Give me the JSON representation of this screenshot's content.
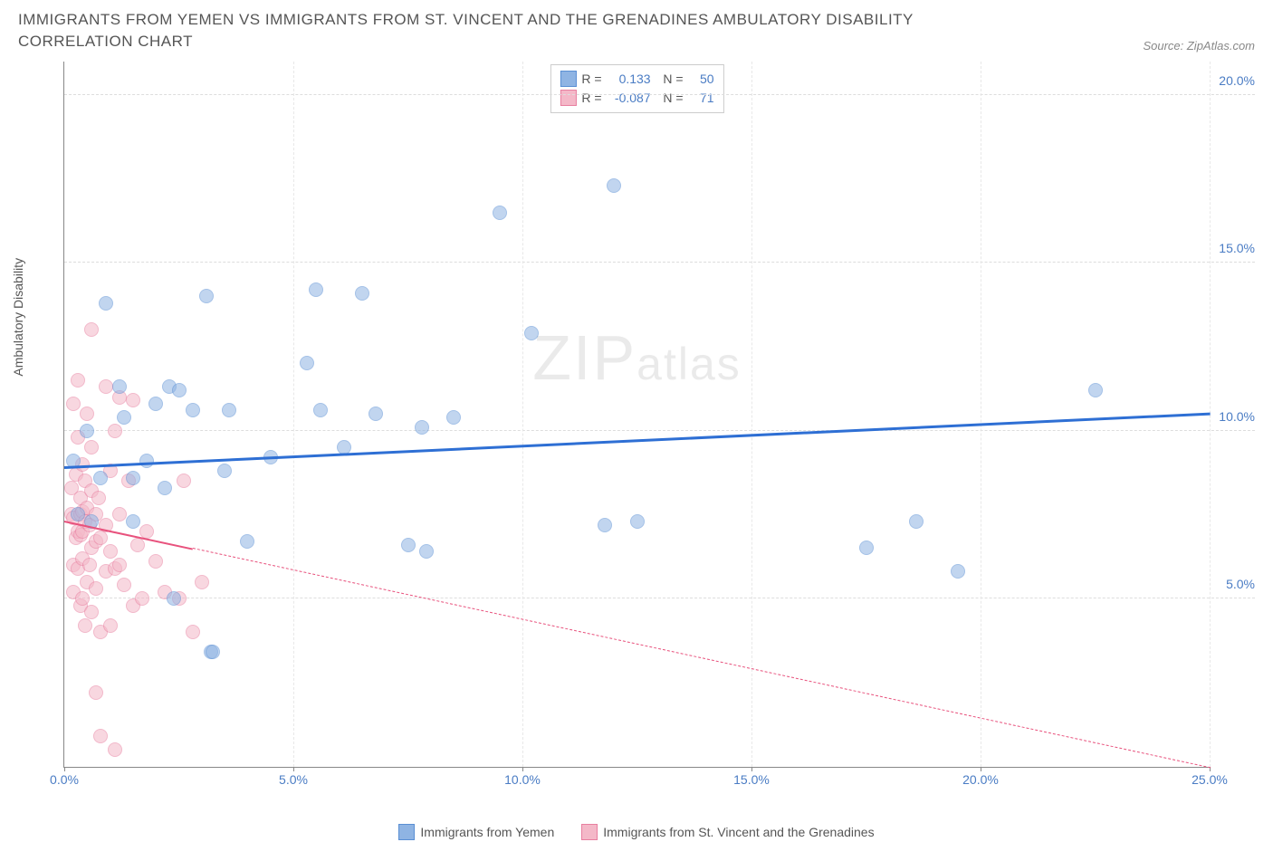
{
  "title": "IMMIGRANTS FROM YEMEN VS IMMIGRANTS FROM ST. VINCENT AND THE GRENADINES AMBULATORY DISABILITY CORRELATION CHART",
  "source": "Source: ZipAtlas.com",
  "y_axis_label": "Ambulatory Disability",
  "watermark_zip": "ZIP",
  "watermark_atlas": "atlas",
  "chart": {
    "type": "scatter",
    "background_color": "#ffffff",
    "grid_color": "#dddddd",
    "axis_color": "#888888",
    "tick_label_color": "#4a7cc4",
    "xlim": [
      0,
      25
    ],
    "ylim": [
      0,
      21
    ],
    "x_ticks": [
      0,
      5,
      10,
      15,
      20,
      25
    ],
    "y_ticks": [
      5,
      10,
      15,
      20
    ],
    "x_tick_suffix": "%",
    "y_tick_suffix": "%",
    "point_radius": 8,
    "point_opacity": 0.55,
    "series": [
      {
        "name": "Immigrants from Yemen",
        "color": "#8fb4e3",
        "border_color": "#5a8fd4",
        "R": "0.133",
        "N": "50",
        "trend": {
          "x1": 0,
          "y1": 8.95,
          "x2": 25,
          "y2": 10.55,
          "solid_until_x": 25,
          "color": "#2e6fd4",
          "width": 2.5
        },
        "points": [
          [
            0.2,
            9.1
          ],
          [
            0.3,
            7.5
          ],
          [
            0.5,
            10.0
          ],
          [
            0.6,
            7.3
          ],
          [
            0.8,
            8.6
          ],
          [
            0.9,
            13.8
          ],
          [
            1.2,
            11.3
          ],
          [
            1.3,
            10.4
          ],
          [
            1.5,
            7.3
          ],
          [
            1.5,
            8.6
          ],
          [
            1.8,
            9.1
          ],
          [
            2.0,
            10.8
          ],
          [
            2.2,
            8.3
          ],
          [
            2.3,
            11.3
          ],
          [
            2.5,
            11.2
          ],
          [
            2.8,
            10.6
          ],
          [
            3.1,
            14.0
          ],
          [
            3.2,
            3.4
          ],
          [
            3.25,
            3.4
          ],
          [
            2.4,
            5.0
          ],
          [
            3.5,
            8.8
          ],
          [
            3.6,
            10.6
          ],
          [
            4.0,
            6.7
          ],
          [
            4.5,
            9.2
          ],
          [
            5.3,
            12.0
          ],
          [
            5.5,
            14.2
          ],
          [
            5.6,
            10.6
          ],
          [
            6.1,
            9.5
          ],
          [
            6.5,
            14.1
          ],
          [
            6.8,
            10.5
          ],
          [
            7.5,
            6.6
          ],
          [
            7.8,
            10.1
          ],
          [
            7.9,
            6.4
          ],
          [
            8.5,
            10.4
          ],
          [
            9.5,
            16.5
          ],
          [
            10.2,
            12.9
          ],
          [
            11.8,
            7.2
          ],
          [
            12.0,
            17.3
          ],
          [
            12.5,
            7.3
          ],
          [
            17.5,
            6.5
          ],
          [
            18.6,
            7.3
          ],
          [
            19.5,
            5.8
          ],
          [
            22.5,
            11.2
          ]
        ]
      },
      {
        "name": "Immigrants from St. Vincent and the Grenadines",
        "color": "#f4b8c8",
        "border_color": "#e87fa0",
        "R": "-0.087",
        "N": "71",
        "trend": {
          "x1": 0,
          "y1": 7.35,
          "x2": 25,
          "y2": 0.0,
          "solid_until_x": 2.8,
          "color": "#e8527d",
          "width": 2
        },
        "points": [
          [
            0.15,
            7.5
          ],
          [
            0.15,
            8.3
          ],
          [
            0.2,
            5.2
          ],
          [
            0.2,
            6.0
          ],
          [
            0.2,
            10.8
          ],
          [
            0.2,
            7.4
          ],
          [
            0.25,
            6.8
          ],
          [
            0.25,
            8.7
          ],
          [
            0.3,
            5.9
          ],
          [
            0.3,
            7.0
          ],
          [
            0.3,
            9.8
          ],
          [
            0.3,
            11.5
          ],
          [
            0.35,
            4.8
          ],
          [
            0.35,
            6.9
          ],
          [
            0.35,
            7.5
          ],
          [
            0.35,
            8.0
          ],
          [
            0.4,
            5.0
          ],
          [
            0.4,
            6.2
          ],
          [
            0.4,
            7.0
          ],
          [
            0.4,
            7.6
          ],
          [
            0.4,
            9.0
          ],
          [
            0.45,
            4.2
          ],
          [
            0.45,
            7.3
          ],
          [
            0.45,
            8.5
          ],
          [
            0.5,
            5.5
          ],
          [
            0.5,
            7.7
          ],
          [
            0.5,
            10.5
          ],
          [
            0.55,
            6.0
          ],
          [
            0.55,
            7.2
          ],
          [
            0.6,
            4.6
          ],
          [
            0.6,
            6.5
          ],
          [
            0.6,
            8.2
          ],
          [
            0.6,
            9.5
          ],
          [
            0.6,
            13.0
          ],
          [
            0.7,
            2.2
          ],
          [
            0.7,
            5.3
          ],
          [
            0.7,
            6.7
          ],
          [
            0.7,
            7.5
          ],
          [
            0.75,
            8.0
          ],
          [
            0.8,
            4.0
          ],
          [
            0.8,
            0.9
          ],
          [
            0.8,
            6.8
          ],
          [
            0.9,
            5.8
          ],
          [
            0.9,
            7.2
          ],
          [
            0.9,
            11.3
          ],
          [
            1.0,
            4.2
          ],
          [
            1.0,
            6.4
          ],
          [
            1.0,
            8.8
          ],
          [
            1.1,
            0.5
          ],
          [
            1.1,
            5.9
          ],
          [
            1.1,
            10.0
          ],
          [
            1.2,
            6.0
          ],
          [
            1.2,
            7.5
          ],
          [
            1.2,
            11.0
          ],
          [
            1.3,
            5.4
          ],
          [
            1.4,
            8.5
          ],
          [
            1.5,
            4.8
          ],
          [
            1.5,
            10.9
          ],
          [
            1.6,
            6.6
          ],
          [
            1.7,
            5.0
          ],
          [
            1.8,
            7.0
          ],
          [
            2.0,
            6.1
          ],
          [
            2.2,
            5.2
          ],
          [
            2.5,
            5.0
          ],
          [
            2.6,
            8.5
          ],
          [
            2.8,
            4.0
          ],
          [
            3.0,
            5.5
          ]
        ]
      }
    ]
  },
  "legend_top": {
    "R_label": "R =",
    "N_label": "N ="
  },
  "bottom_legend_label_1": "Immigrants from Yemen",
  "bottom_legend_label_2": "Immigrants from St. Vincent and the Grenadines"
}
